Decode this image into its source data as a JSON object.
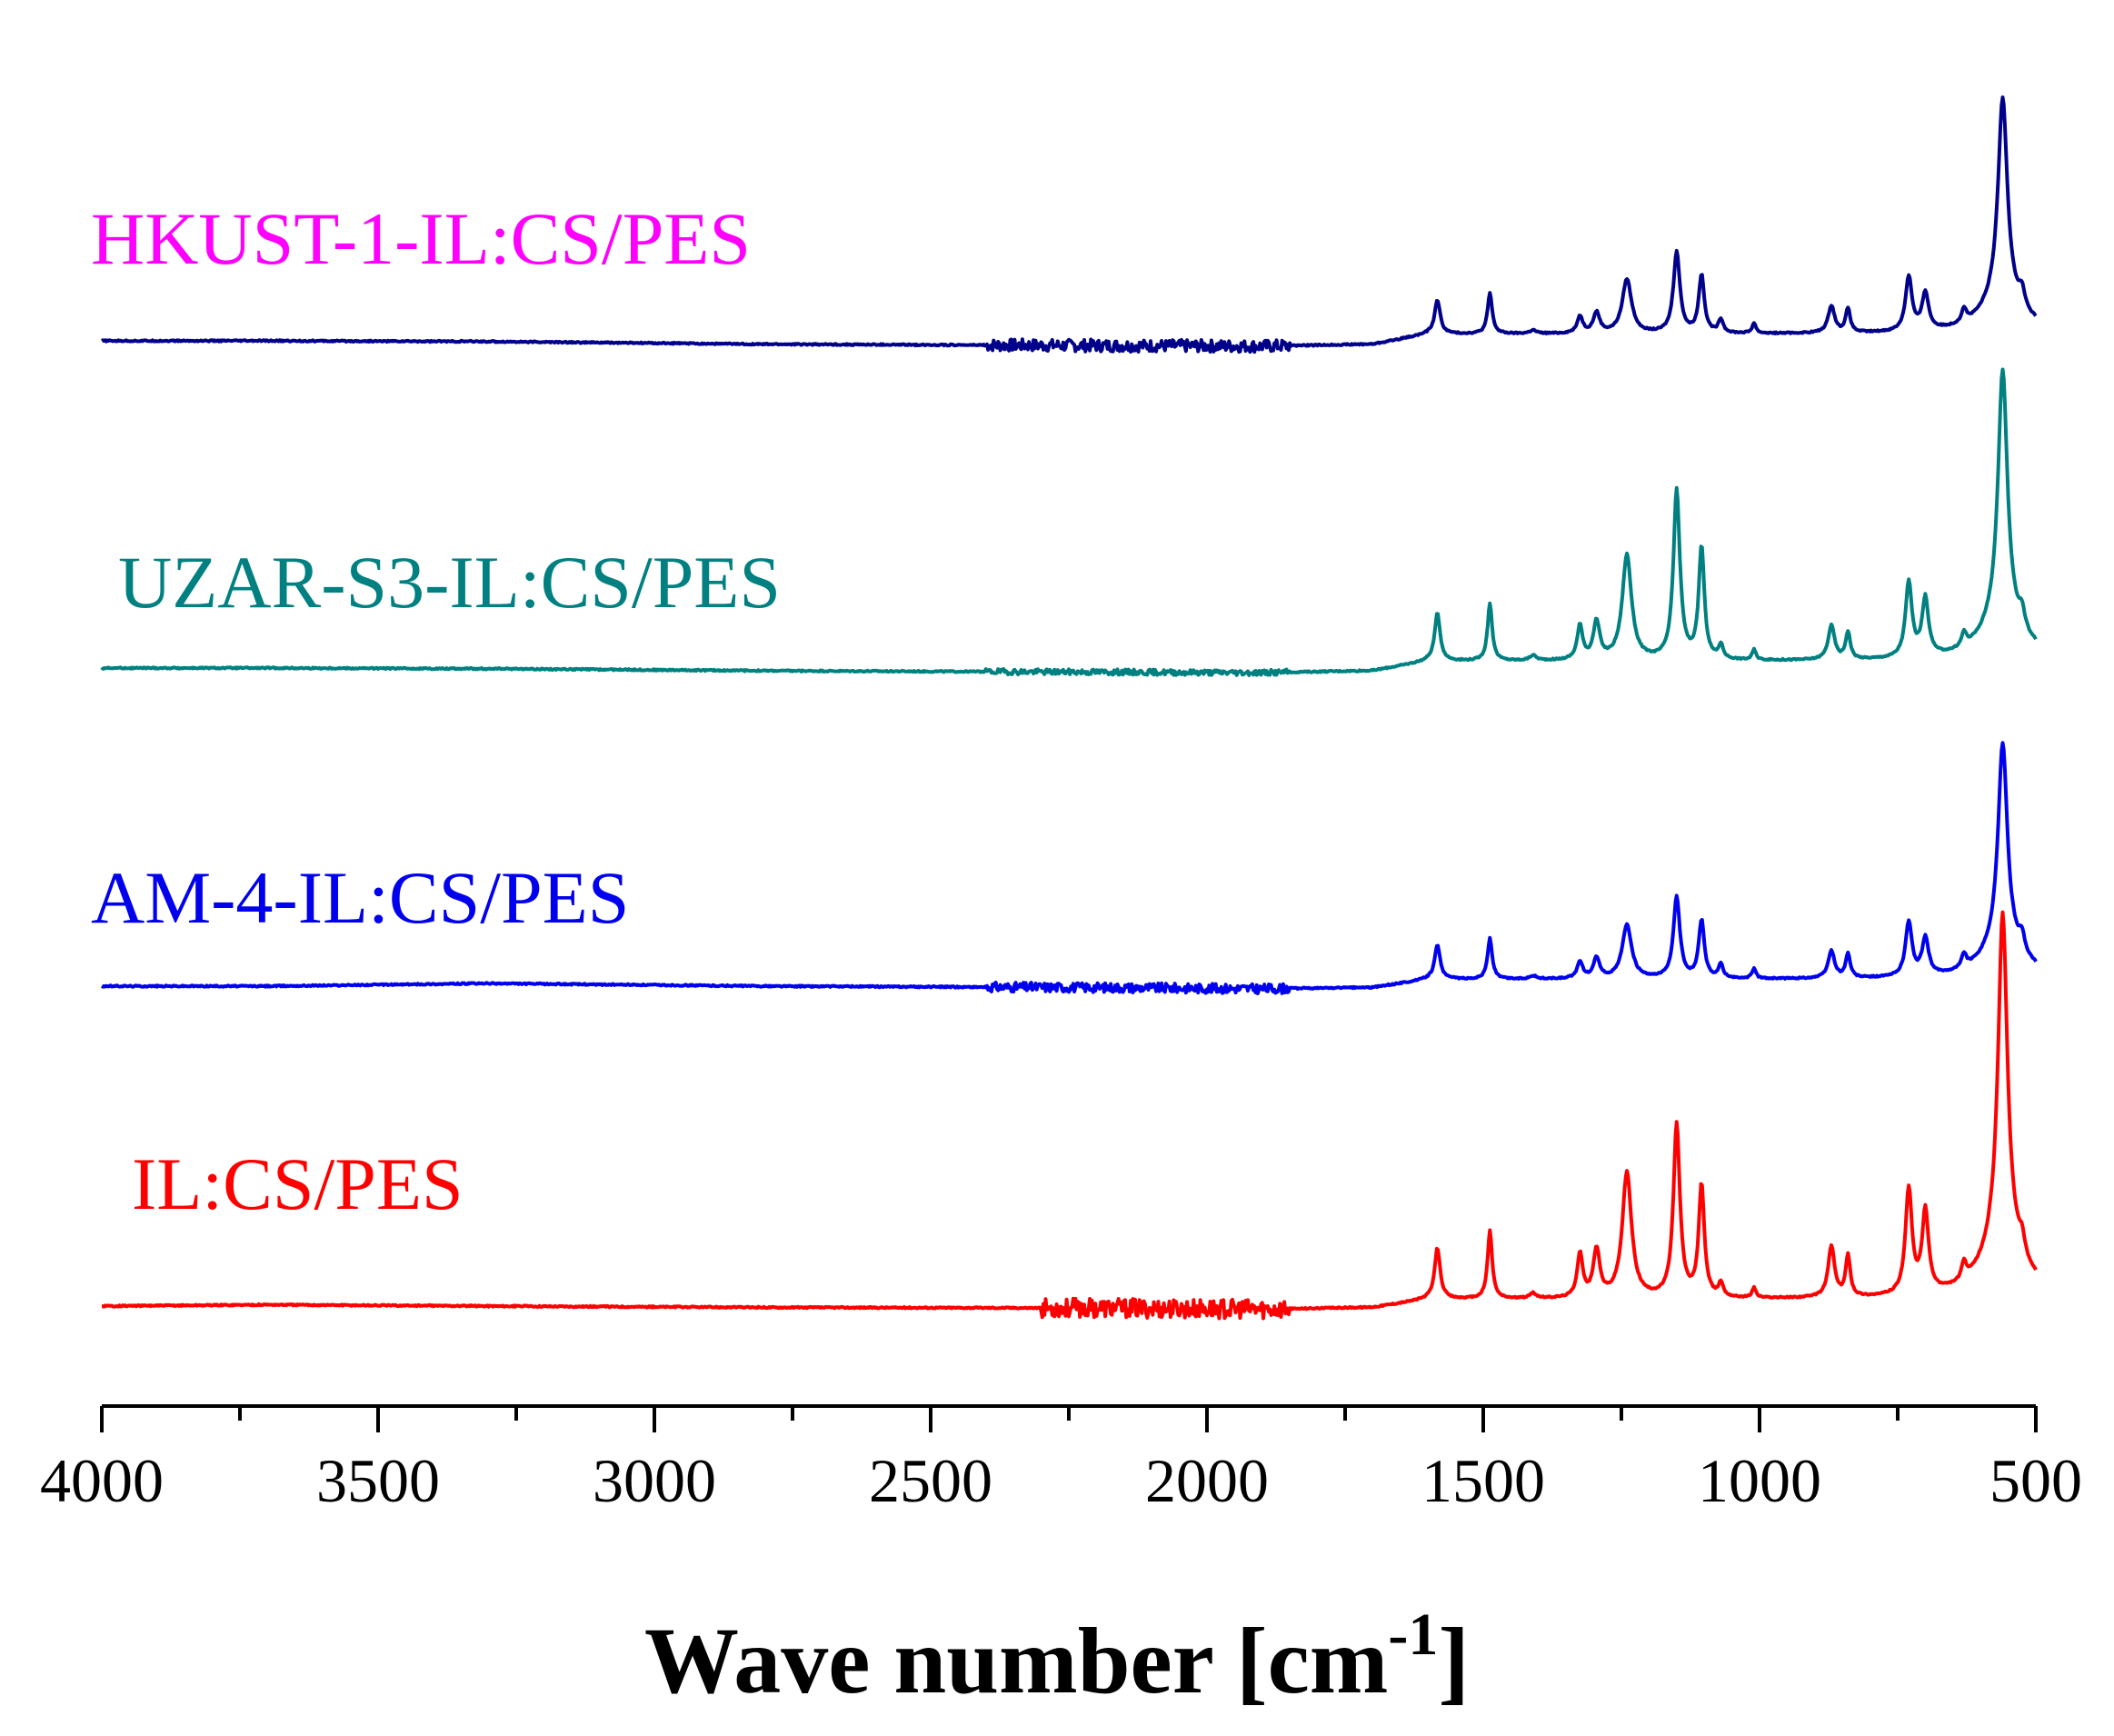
{
  "chart_data": {
    "type": "line",
    "title": "",
    "xlabel": "Wave number [cm",
    "xlabel_sup": "-1",
    "xlabel_close": "]",
    "ylabel": "",
    "xlim": [
      4000,
      500
    ],
    "x_reversed": true,
    "grid": false,
    "y_ticks_shown": false,
    "x_ticks": [
      4000,
      3500,
      3000,
      2500,
      2000,
      1500,
      1000,
      500
    ],
    "x_tick_labels": [
      "4000",
      "3500",
      "3000",
      "2500",
      "2000",
      "1500",
      "1000",
      "500"
    ],
    "x_minor_step": 250,
    "y_units": "arbitrary (stacked, offset)",
    "series": [
      {
        "name": "HKUST-1-IL:CS/PES",
        "color": "#00008B",
        "offset": 3,
        "noise": {
          "from": 2400,
          "to": 1850,
          "amp": 0.018,
          "seed": 7
        },
        "peaks": [
          [
            1583,
            0.1,
            6
          ],
          [
            1488,
            0.12,
            5
          ],
          [
            1410,
            0.01,
            7
          ],
          [
            1325,
            0.05,
            6
          ],
          [
            1295,
            0.06,
            7
          ],
          [
            1240,
            0.16,
            10
          ],
          [
            1150,
            0.24,
            7
          ],
          [
            1105,
            0.17,
            6
          ],
          [
            1070,
            0.04,
            5
          ],
          [
            1010,
            0.03,
            4
          ],
          [
            870,
            0.08,
            7
          ],
          [
            840,
            0.07,
            5
          ],
          [
            730,
            0.16,
            7
          ],
          [
            700,
            0.11,
            7
          ],
          [
            630,
            0.04,
            5
          ],
          [
            560,
            0.6,
            10
          ],
          [
            525,
            0.05,
            6
          ]
        ],
        "baseline": [
          [
            4000,
            0.0
          ],
          [
            3700,
            0.0
          ],
          [
            3300,
            -0.002
          ],
          [
            2800,
            -0.01
          ],
          [
            2200,
            -0.014
          ],
          [
            1900,
            -0.016
          ],
          [
            1700,
            -0.01
          ],
          [
            1600,
            0.02
          ]
        ]
      },
      {
        "name": "UZAR-S3-IL:CS/PES",
        "color": "#008080",
        "offset": 2,
        "noise": {
          "from": 2400,
          "to": 1850,
          "amp": 0.008,
          "seed": 19
        },
        "peaks": [
          [
            1583,
            0.14,
            6
          ],
          [
            1488,
            0.17,
            5
          ],
          [
            1410,
            0.015,
            7
          ],
          [
            1325,
            0.1,
            6
          ],
          [
            1295,
            0.11,
            7
          ],
          [
            1240,
            0.31,
            10
          ],
          [
            1150,
            0.5,
            7
          ],
          [
            1105,
            0.33,
            6
          ],
          [
            1070,
            0.04,
            5
          ],
          [
            1010,
            0.03,
            4
          ],
          [
            870,
            0.1,
            7
          ],
          [
            840,
            0.08,
            5
          ],
          [
            730,
            0.22,
            7
          ],
          [
            700,
            0.17,
            7
          ],
          [
            630,
            0.04,
            5
          ],
          [
            560,
            0.74,
            10
          ],
          [
            525,
            0.05,
            6
          ]
        ],
        "baseline": [
          [
            4000,
            0.0
          ],
          [
            3700,
            0.0
          ],
          [
            3300,
            -0.002
          ],
          [
            2800,
            -0.008
          ],
          [
            2200,
            -0.012
          ],
          [
            1900,
            -0.014
          ],
          [
            1700,
            -0.008
          ],
          [
            1600,
            0.02
          ]
        ]
      },
      {
        "name": "AM-4-IL:CS/PES",
        "color": "#0000EE",
        "offset": 1,
        "noise": {
          "from": 2400,
          "to": 1850,
          "amp": 0.014,
          "seed": 31
        },
        "peaks": [
          [
            1583,
            0.1,
            6
          ],
          [
            1488,
            0.12,
            5
          ],
          [
            1410,
            0.01,
            7
          ],
          [
            1325,
            0.05,
            6
          ],
          [
            1295,
            0.06,
            7
          ],
          [
            1240,
            0.16,
            10
          ],
          [
            1150,
            0.24,
            7
          ],
          [
            1105,
            0.17,
            6
          ],
          [
            1070,
            0.04,
            5
          ],
          [
            1010,
            0.03,
            4
          ],
          [
            870,
            0.08,
            7
          ],
          [
            840,
            0.07,
            5
          ],
          [
            730,
            0.16,
            7
          ],
          [
            700,
            0.11,
            7
          ],
          [
            630,
            0.04,
            5
          ],
          [
            560,
            0.6,
            10
          ],
          [
            525,
            0.05,
            6
          ]
        ],
        "baseline": [
          [
            4000,
            0.0
          ],
          [
            3700,
            0.0
          ],
          [
            3300,
            0.008
          ],
          [
            2800,
            0.0
          ],
          [
            2200,
            -0.004
          ],
          [
            1900,
            -0.008
          ],
          [
            1700,
            -0.004
          ],
          [
            1600,
            0.02
          ]
        ]
      },
      {
        "name": "IL:CS/PES",
        "color": "#FF0000",
        "offset": 0,
        "noise": {
          "from": 2300,
          "to": 1850,
          "amp": 0.028,
          "seed": 53
        },
        "peaks": [
          [
            1583,
            0.15,
            6
          ],
          [
            1488,
            0.2,
            5
          ],
          [
            1410,
            0.015,
            7
          ],
          [
            1325,
            0.13,
            6
          ],
          [
            1295,
            0.14,
            7
          ],
          [
            1240,
            0.37,
            10
          ],
          [
            1150,
            0.51,
            7
          ],
          [
            1105,
            0.33,
            6
          ],
          [
            1070,
            0.04,
            5
          ],
          [
            1010,
            0.03,
            4
          ],
          [
            870,
            0.15,
            7
          ],
          [
            840,
            0.12,
            5
          ],
          [
            730,
            0.31,
            7
          ],
          [
            700,
            0.24,
            7
          ],
          [
            630,
            0.05,
            5
          ],
          [
            560,
            0.98,
            10
          ],
          [
            525,
            0.05,
            6
          ]
        ],
        "baseline": [
          [
            4000,
            0.0
          ],
          [
            3700,
            0.004
          ],
          [
            3300,
            0.0
          ],
          [
            2800,
            -0.004
          ],
          [
            2200,
            -0.006
          ],
          [
            1900,
            -0.01
          ],
          [
            1700,
            -0.004
          ],
          [
            1600,
            0.02
          ]
        ]
      }
    ]
  },
  "legend": {
    "labels": [
      {
        "text": "HKUST-1-IL:CS/PES",
        "color": "#FF00FF"
      },
      {
        "text": "UZAR-S3-IL:CS/PES",
        "color": "#008080"
      },
      {
        "text": "AM-4-IL:CS/PES",
        "color": "#0000EE"
      },
      {
        "text": "IL:CS/PES",
        "color": "#FF0000"
      }
    ]
  }
}
